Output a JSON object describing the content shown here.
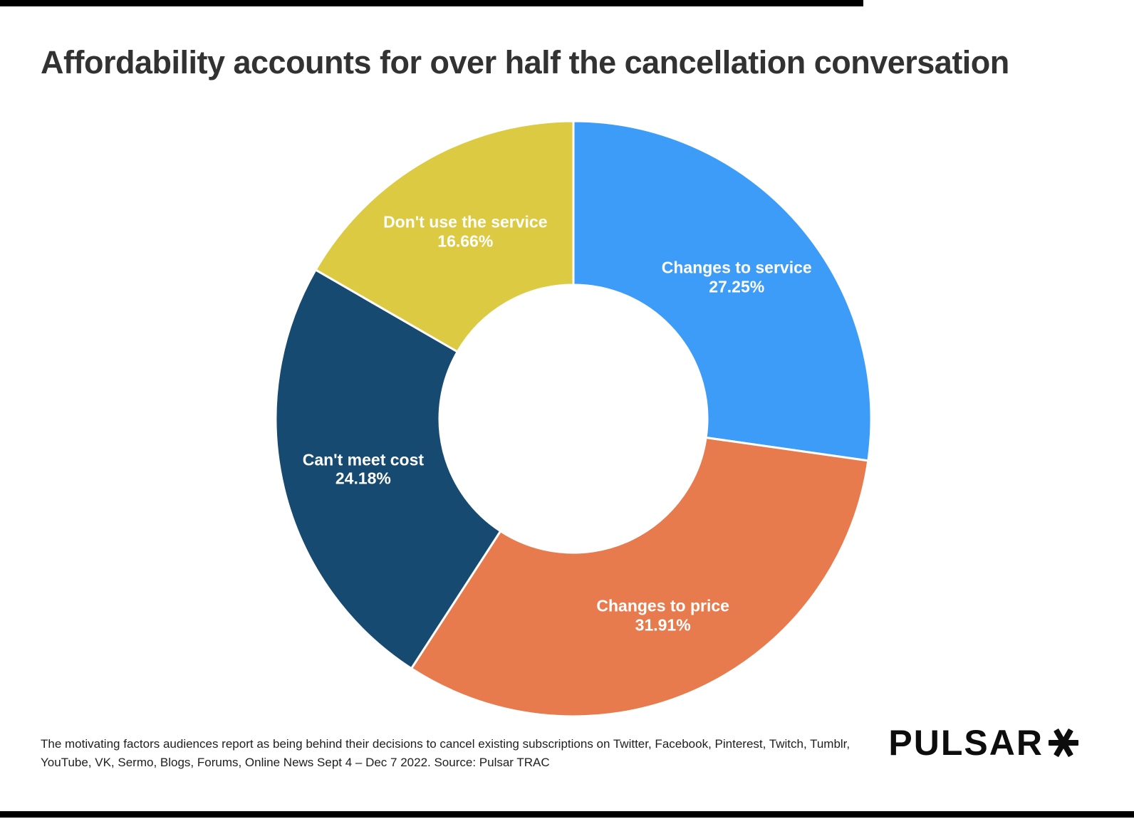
{
  "title": "Affordability accounts for over half the cancellation conversation",
  "chart_data": {
    "type": "pie",
    "subtype": "donut",
    "title": "Affordability accounts for over half the cancellation conversation",
    "categories": [
      "Changes to service",
      "Changes to price",
      "Can't meet cost",
      "Don't use the service"
    ],
    "values": [
      27.25,
      31.91,
      24.18,
      16.66
    ],
    "unit": "%",
    "start_angle": "12 o'clock, clockwise",
    "inner_radius_ratio": 0.45,
    "label_text_color": "#ffffff",
    "segments": [
      {
        "label": "Changes to service",
        "value": 27.25,
        "value_label": "27.25%",
        "color": "#3d9cf8"
      },
      {
        "label": "Changes to price",
        "value": 31.91,
        "value_label": "31.91%",
        "color": "#e87b4e"
      },
      {
        "label": "Can't meet cost",
        "value": 24.18,
        "value_label": "24.18%",
        "color": "#164a70"
      },
      {
        "label": "Don't use the service",
        "value": 16.66,
        "value_label": "16.66%",
        "color": "#dcca42"
      }
    ]
  },
  "footer": {
    "note": "The motivating factors audiences report as being behind their decisions to cancel existing subscriptions on Twitter, Facebook, Pinterest, Twitch, Tumblr, YouTube, VK, Sermo, Blogs, Forums, Online News Sept 4 – Dec 7 2022. Source: Pulsar TRAC",
    "logo_text": "PULSAR"
  },
  "colors": {
    "background": "#ffffff",
    "rule_bars": "#000000",
    "title_text": "#323232",
    "note_text": "#1e1e1e",
    "logo": "#0d0d0d"
  }
}
